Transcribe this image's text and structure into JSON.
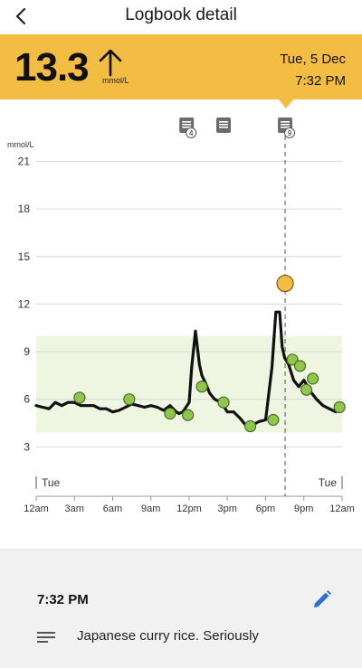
{
  "header": {
    "title": "Logbook detail",
    "back_icon": "chevron-left-icon"
  },
  "reading": {
    "value": "13.3",
    "unit": "mmol/L",
    "trend": "rising",
    "date": "Tue, 5 Dec",
    "time": "7:32 PM",
    "color": "#f3bd43"
  },
  "chart_data": {
    "type": "line",
    "ylabel": "mmol/L",
    "ylim": [
      0,
      22
    ],
    "y_ticks": [
      "21",
      "18",
      "15",
      "12",
      "9",
      "6",
      "3"
    ],
    "x_ticks": [
      "12am",
      "3am",
      "6am",
      "9am",
      "12pm",
      "3pm",
      "6pm",
      "9pm",
      "12am"
    ],
    "day_labels": [
      "Tue",
      "Tue"
    ],
    "target_range": [
      3.9,
      10.0
    ],
    "series": [
      {
        "x": [
          0,
          0.5,
          1,
          1.5,
          2,
          2.5,
          3,
          3.5,
          4,
          4.5,
          5,
          5.5,
          6,
          6.5,
          7,
          7.5,
          8,
          8.5,
          9,
          9.5,
          10,
          10.5,
          11,
          11.2,
          11.5,
          12,
          12.2,
          12.5,
          12.8,
          13,
          13.3,
          13.6,
          14,
          14.5,
          15,
          15.5,
          16,
          16.5,
          17,
          17.5,
          18,
          18.5,
          18.8,
          19.1,
          19.3,
          19.5,
          19.8,
          20.2,
          20.6,
          21,
          21.5,
          22,
          22.5,
          23,
          23.5,
          24
        ],
        "y": [
          5.6,
          5.5,
          5.4,
          5.8,
          5.6,
          5.8,
          5.8,
          5.6,
          5.6,
          5.6,
          5.4,
          5.4,
          5.2,
          5.3,
          5.5,
          5.7,
          5.6,
          5.5,
          5.6,
          5.5,
          5.3,
          5.6,
          5.2,
          5.1,
          5.2,
          5.8,
          8.0,
          10.3,
          8.2,
          7.5,
          7.0,
          6.4,
          6.0,
          5.8,
          5.2,
          5.2,
          4.8,
          4.3,
          4.4,
          4.6,
          4.7,
          8.0,
          11.5,
          11.5,
          9.3,
          8.6,
          8.2,
          7.2,
          6.8,
          7.2,
          6.5,
          6.0,
          5.6,
          5.4,
          5.2,
          5.5
        ]
      }
    ],
    "scan_points": {
      "x": [
        3.4,
        7.3,
        10.5,
        11.9,
        13.0,
        14.7,
        16.8,
        18.6,
        20.1,
        20.7,
        21.2,
        21.7,
        23.8
      ],
      "y": [
        6.1,
        6.0,
        5.1,
        5.0,
        6.8,
        5.8,
        4.3,
        4.7,
        8.5,
        8.1,
        6.6,
        7.3,
        5.5
      ]
    },
    "selected_point": {
      "x": 19.53,
      "y": 13.3
    },
    "note_markers": [
      {
        "x": 11.8,
        "count": "4"
      },
      {
        "x": 14.7,
        "count": ""
      },
      {
        "x": 19.53,
        "count": "9"
      }
    ],
    "colors": {
      "line": "#111111",
      "scan": "#8fc74a",
      "selected": "#f3bd43",
      "target_band": "#eef6e2"
    }
  },
  "detail": {
    "time": "7:32 PM",
    "note": "Japanese curry rice. Seriously",
    "edit_icon": "pencil-icon",
    "note_icon": "notes-icon",
    "edit_color": "#2a6fd6"
  }
}
